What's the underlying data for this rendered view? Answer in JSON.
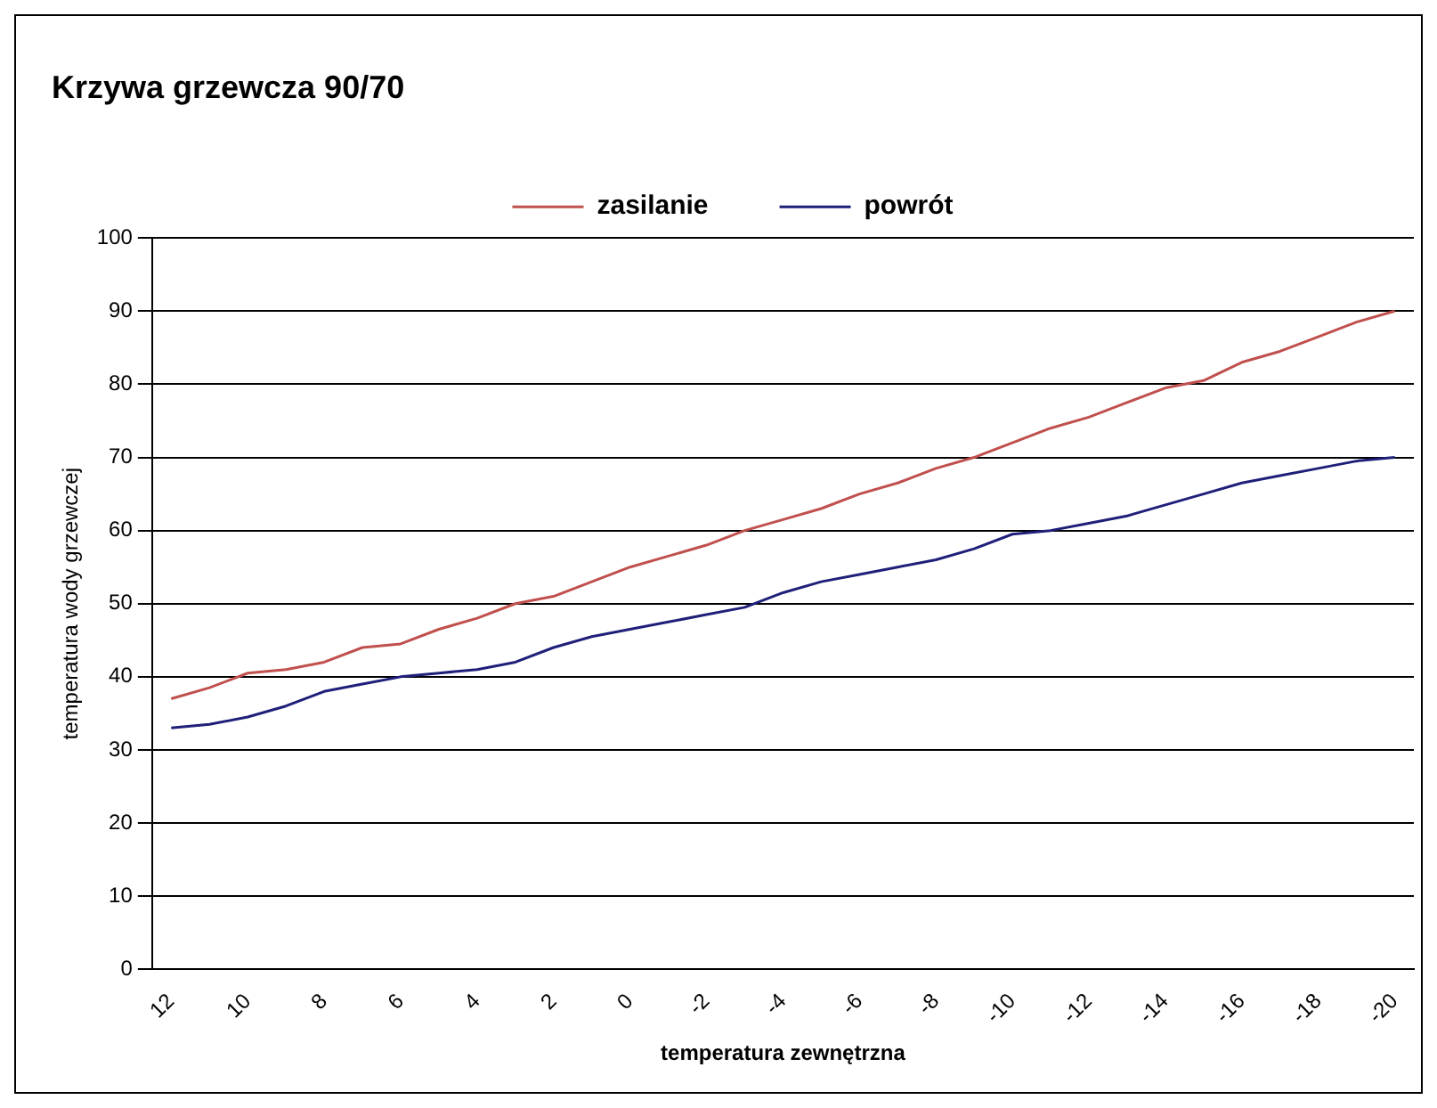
{
  "chart_data": {
    "type": "line",
    "title": "Krzywa grzewcza 90/70",
    "xlabel": "temperatura zewnętrzna",
    "ylabel": "temperatura wody grzewczej",
    "categories": [
      "12",
      null,
      "10",
      null,
      "8",
      null,
      "6",
      null,
      "4",
      null,
      "2",
      null,
      "0",
      null,
      "-2",
      null,
      "-4",
      null,
      "-6",
      null,
      "-8",
      null,
      "-10",
      null,
      "-12",
      null,
      "-14",
      null,
      "-16",
      null,
      "-18",
      null,
      "-20"
    ],
    "series": [
      {
        "name": "zasilanie",
        "color": "#c0504d",
        "values": [
          37,
          38.5,
          40.5,
          41,
          42,
          44,
          44.5,
          46.5,
          48,
          50,
          51,
          53,
          55,
          56.5,
          58,
          60,
          61.5,
          63,
          65,
          66.5,
          68.5,
          70,
          72,
          74,
          75.5,
          77.5,
          79.5,
          80.5,
          83,
          84.5,
          86.5,
          88.5,
          90
        ]
      },
      {
        "name": "powrót",
        "color": "#1f1f7a",
        "values": [
          33,
          33.5,
          34.5,
          36,
          38,
          39,
          40,
          40.5,
          41,
          42,
          44,
          45.5,
          46.5,
          47.5,
          48.5,
          49.5,
          51.5,
          53,
          54,
          55,
          56,
          57.5,
          59.5,
          60,
          61,
          62,
          63.5,
          65,
          66.5,
          67.5,
          68.5,
          69.5,
          70
        ]
      }
    ],
    "ylim": [
      0,
      100
    ],
    "yticks": [
      0,
      10,
      20,
      30,
      40,
      50,
      60,
      70,
      80,
      90,
      100
    ],
    "grid": "y",
    "legend": "top",
    "marker": "none",
    "line_style": "solid"
  }
}
